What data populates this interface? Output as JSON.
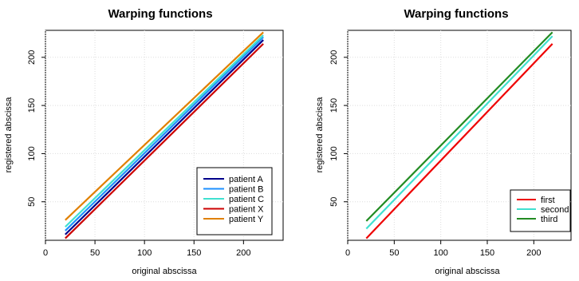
{
  "chart_data": [
    {
      "type": "line",
      "title": "Warping functions",
      "xlabel": "original abscissa",
      "ylabel": "registered abscissa",
      "xlim": [
        0,
        240
      ],
      "ylim": [
        10,
        228
      ],
      "xticks": [
        0,
        50,
        100,
        150,
        200
      ],
      "yticks": [
        50,
        100,
        150,
        200
      ],
      "grid": true,
      "legend_position": "bottom-right",
      "series": [
        {
          "name": "patient A",
          "color": "#00008b",
          "x": [
            20,
            220
          ],
          "y": [
            16,
            218
          ]
        },
        {
          "name": "patient B",
          "color": "#1e90ff",
          "x": [
            20,
            220
          ],
          "y": [
            20,
            221
          ]
        },
        {
          "name": "patient C",
          "color": "#40e0d0",
          "x": [
            20,
            220
          ],
          "y": [
            24,
            223
          ]
        },
        {
          "name": "patient X",
          "color": "#cc0000",
          "x": [
            20,
            220
          ],
          "y": [
            12,
            214
          ]
        },
        {
          "name": "patient Y",
          "color": "#e08000",
          "x": [
            20,
            220
          ],
          "y": [
            31,
            226
          ]
        }
      ]
    },
    {
      "type": "line",
      "title": "Warping functions",
      "xlabel": "original abscissa",
      "ylabel": "registered abscissa",
      "xlim": [
        0,
        240
      ],
      "ylim": [
        10,
        228
      ],
      "xticks": [
        0,
        50,
        100,
        150,
        200
      ],
      "yticks": [
        50,
        100,
        150,
        200
      ],
      "grid": true,
      "legend_position": "bottom-right",
      "series": [
        {
          "name": "first",
          "color": "#ee0000",
          "x": [
            20,
            220
          ],
          "y": [
            12,
            214
          ]
        },
        {
          "name": "second",
          "color": "#40e0d0",
          "x": [
            20,
            220
          ],
          "y": [
            22,
            222
          ]
        },
        {
          "name": "third",
          "color": "#228b22",
          "x": [
            20,
            220
          ],
          "y": [
            30,
            226
          ]
        }
      ]
    }
  ]
}
